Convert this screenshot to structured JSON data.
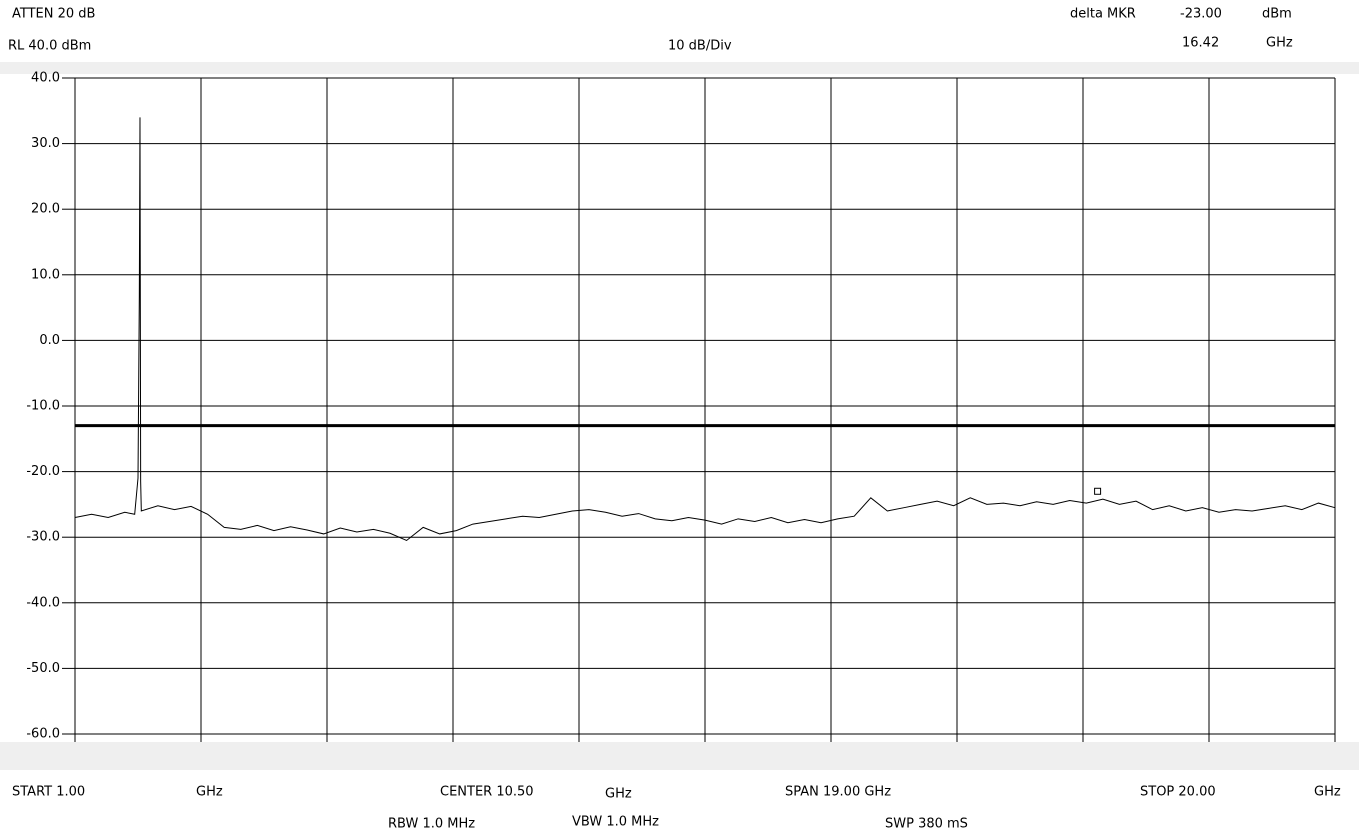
{
  "chart_data": {
    "type": "line",
    "header": {
      "atten": "ATTEN 20  dB",
      "ref_level": "RL 40.0   dBm",
      "scale": "10  dB/Div",
      "marker_title": "delta MKR",
      "marker_unit_y": "dBm",
      "marker_unit_x": "GHz"
    },
    "footer": {
      "start": "START  1.00",
      "start_unit": "GHz",
      "center": "CENTER  10.50",
      "center_unit": "GHz",
      "span": "SPAN  19.00 GHz",
      "stop": "STOP  20.00",
      "stop_unit": "GHz",
      "rbw": "RBW  1.0  MHz",
      "vbw": "VBW  1.0  MHz",
      "sweep": "SWP  380   mS"
    },
    "marker": {
      "x": 16.42,
      "y": -23,
      "x_label": "16.42",
      "y_label": "-23.00"
    },
    "limit_line": -13,
    "x": [
      1.0,
      1.25,
      1.5,
      1.75,
      1.9,
      1.95,
      1.97,
      1.98,
      1.99,
      2.0,
      2.25,
      2.5,
      2.75,
      3.0,
      3.25,
      3.5,
      3.75,
      4.0,
      4.25,
      4.5,
      4.75,
      5.0,
      5.25,
      5.5,
      5.75,
      6.0,
      6.25,
      6.5,
      6.75,
      7.0,
      7.25,
      7.5,
      7.75,
      8.0,
      8.25,
      8.5,
      8.75,
      9.0,
      9.25,
      9.5,
      9.75,
      10.0,
      10.25,
      10.5,
      10.75,
      11.0,
      11.25,
      11.5,
      11.75,
      12.0,
      12.25,
      12.5,
      12.75,
      13.0,
      13.25,
      13.5,
      13.75,
      14.0,
      14.25,
      14.5,
      14.75,
      15.0,
      15.25,
      15.5,
      15.75,
      16.0,
      16.25,
      16.5,
      16.75,
      17.0,
      17.25,
      17.5,
      17.75,
      18.0,
      18.25,
      18.5,
      18.75,
      19.0,
      19.25,
      19.5,
      19.75,
      20.0
    ],
    "series": [
      {
        "name": "trace",
        "color": "#000000",
        "values": [
          -27,
          -26.5,
          -27,
          -26.2,
          -26.5,
          -21,
          7,
          34,
          -21.5,
          -26,
          -25.2,
          -25.8,
          -25.3,
          -26.5,
          -28.5,
          -28.8,
          -28.2,
          -29,
          -28.4,
          -28.9,
          -29.5,
          -28.6,
          -29.2,
          -28.8,
          -29.4,
          -30.5,
          -28.5,
          -29.5,
          -29,
          -28,
          -27.6,
          -27.2,
          -26.8,
          -27,
          -26.5,
          -26,
          -25.8,
          -26.2,
          -26.8,
          -26.4,
          -27.2,
          -27.5,
          -27,
          -27.4,
          -28,
          -27.2,
          -27.6,
          -27,
          -27.8,
          -27.3,
          -27.8,
          -27.2,
          -26.8,
          -24,
          -26,
          -25.5,
          -25,
          -24.5,
          -25.2,
          -24,
          -25,
          -24.8,
          -25.2,
          -24.6,
          -25,
          -24.4,
          -24.8,
          -24.2,
          -25,
          -24.5,
          -25.8,
          -25.2,
          -26,
          -25.5,
          -26.2,
          -25.8,
          -26,
          -25.6,
          -25.2,
          -25.8,
          -24.8,
          -25.5
        ]
      }
    ],
    "xlim": [
      1,
      20
    ],
    "xticks": [
      1,
      2.9,
      4.8,
      6.7,
      8.6,
      10.5,
      12.4,
      14.3,
      16.2,
      18.1,
      20
    ],
    "ylim": [
      -60,
      40
    ],
    "yticks": [
      {
        "value": -60,
        "label": "-60.0"
      },
      {
        "value": -50,
        "label": "-50.0"
      },
      {
        "value": -40,
        "label": "-40.0"
      },
      {
        "value": -30,
        "label": "-30.0"
      },
      {
        "value": -20,
        "label": "-20.0"
      },
      {
        "value": -10,
        "label": "-10.0"
      },
      {
        "value": 0,
        "label": "0.0"
      },
      {
        "value": 10,
        "label": "10.0"
      },
      {
        "value": 20,
        "label": "20.0"
      },
      {
        "value": 30,
        "label": "30.0"
      },
      {
        "value": 40,
        "label": "40.0"
      }
    ],
    "grid": true
  }
}
